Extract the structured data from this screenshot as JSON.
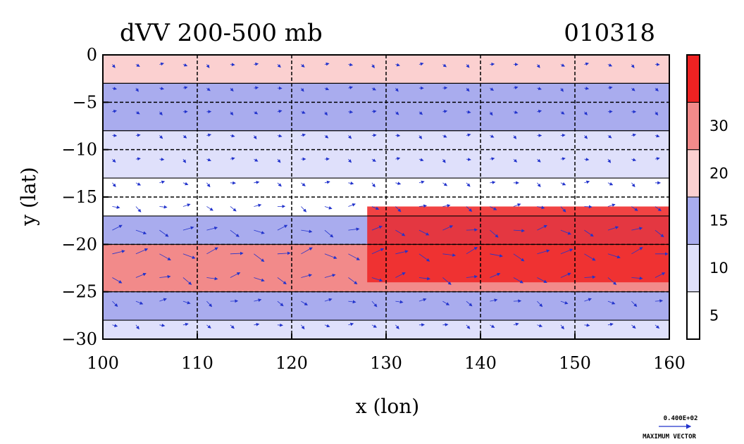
{
  "chart_data": {
    "type": "heatmap",
    "title": "dVV 200-500 mb",
    "date_label": "010318",
    "xlabel": "x (lon)",
    "ylabel": "y (lat)",
    "xlim": [
      100,
      160
    ],
    "ylim": [
      -30,
      0
    ],
    "x_ticks": [
      100,
      110,
      120,
      130,
      140,
      150,
      160
    ],
    "y_ticks": [
      0,
      -5,
      -10,
      -15,
      -20,
      -25,
      -30
    ],
    "grid": true,
    "colorbar": {
      "levels": [
        5,
        10,
        15,
        20,
        30
      ],
      "labels": [
        "5",
        "10",
        "15",
        "20",
        "30"
      ],
      "colors": [
        "#ffffff",
        "#dfe0fb",
        "#a9acee",
        "#fbd0d0",
        "#f28a8a",
        "#ee2222"
      ]
    },
    "vector_key": {
      "value_label": "0.400E+02",
      "caption": "MAXIMUM VECTOR"
    },
    "field_bands": [
      {
        "lat_from": 0,
        "lat_to": -3,
        "level": 3
      },
      {
        "lat_from": -3,
        "lat_to": -8,
        "level": 2
      },
      {
        "lat_from": -8,
        "lat_to": -13,
        "level": 1
      },
      {
        "lat_from": -13,
        "lat_to": -17,
        "level": 0
      },
      {
        "lat_from": -17,
        "lat_to": -20,
        "level": 2
      },
      {
        "lat_from": -20,
        "lat_to": -25,
        "level": 4
      },
      {
        "lat_from": -25,
        "lat_to": -28,
        "level": 2
      },
      {
        "lat_from": -28,
        "lat_to": -30,
        "level": 1
      }
    ],
    "max_core": {
      "lon_from": 128,
      "lon_to": 160,
      "lat_from": -16,
      "lat_to": -24,
      "level": 5
    }
  }
}
